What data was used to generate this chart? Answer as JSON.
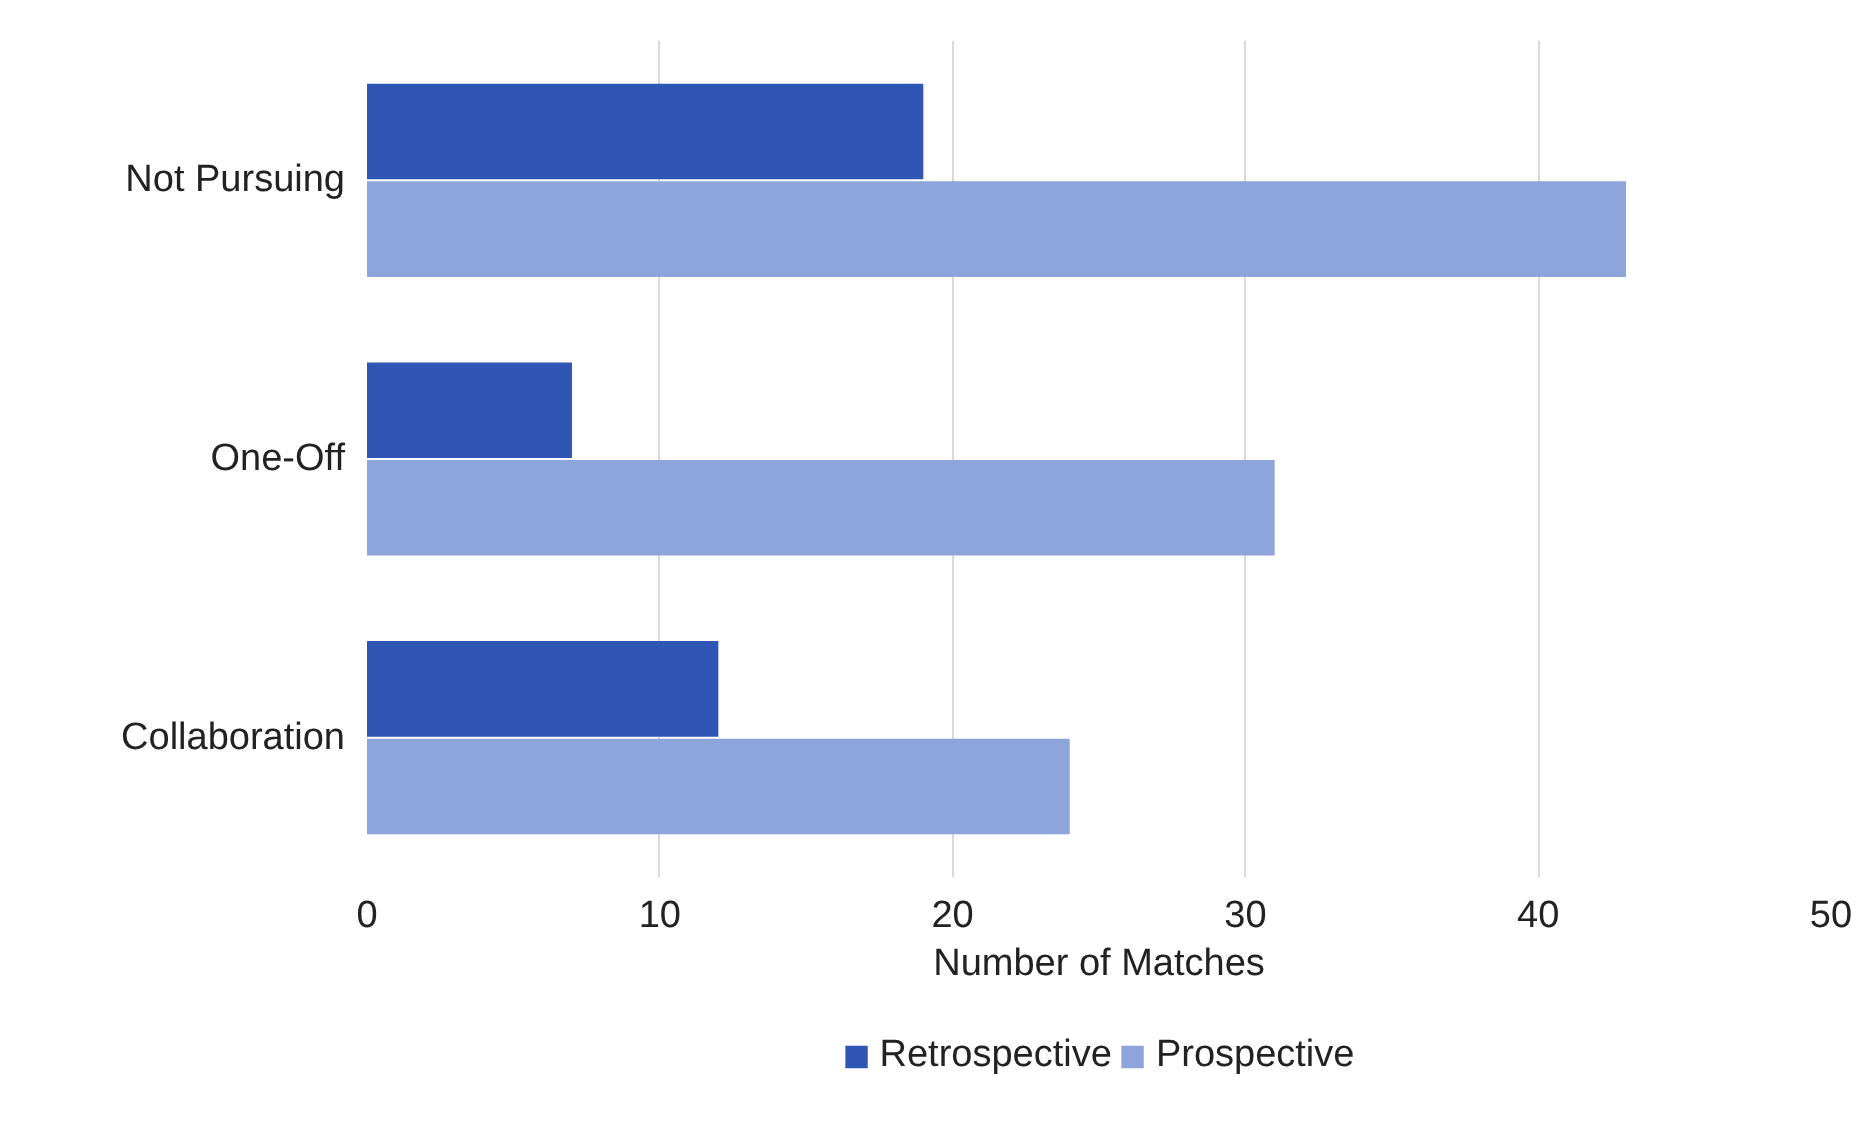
{
  "chart_data": {
    "type": "bar",
    "orientation": "horizontal",
    "xlabel": "Number of Matches",
    "categories": [
      "Not Pursuing",
      "One-Off",
      "Collaboration"
    ],
    "series": [
      {
        "name": "Retrospective",
        "color": "#2f56b4",
        "values": [
          19,
          7,
          12
        ]
      },
      {
        "name": "Prospective",
        "color": "#8da5db",
        "values": [
          43,
          31,
          24
        ]
      }
    ],
    "xlim": [
      0,
      50
    ],
    "xticks": [
      0,
      10,
      20,
      30,
      40,
      50
    ],
    "grid": "x",
    "legend": "bottom"
  }
}
